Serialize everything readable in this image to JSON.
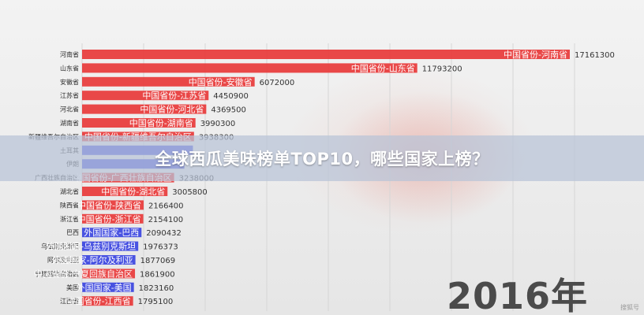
{
  "banner": {
    "title": "全球西瓜美味榜单TOP10，哪些国家上榜？"
  },
  "year_label": "2016年",
  "watermark": "搜狐号",
  "chart_data": {
    "type": "bar",
    "orientation": "horizontal",
    "title": "",
    "xlabel": "",
    "ylabel": "",
    "xlim": [
      0,
      17161300
    ],
    "grid": true,
    "colors": {
      "china": "#e8393a",
      "foreign": "#3a44e0"
    },
    "categories": [
      "河南省",
      "山东省",
      "安徽省",
      "江苏省",
      "河北省",
      "湖南省",
      "新疆维吾尔自治区",
      "土耳其",
      "伊朗",
      "广西壮族自治区",
      "湖北省",
      "陕西省",
      "浙江省",
      "巴西",
      "乌兹别克斯坦",
      "阿尔及利亚",
      "宁夏回族自治区",
      "美国",
      "江西省"
    ],
    "series": [
      {
        "bar_labels": [
          "中国省份-河南省",
          "中国省份-山东省",
          "中国省份-安徽省",
          "中国省份-江苏省",
          "中国省份-河北省",
          "中国省份-湖南省",
          "中国省份-新疆维吾尔自治区",
          "",
          "",
          "中国省份-广西壮族自治区",
          "中国省份-湖北省",
          "中国省份-陕西省",
          "中国省份-浙江省",
          "外国国家-巴西",
          "外国国家-乌兹别克斯坦",
          "外国国家-阿尔及利亚",
          "中国省份-宁夏回族自治区",
          "外国国家-美国",
          "中国省份-江西省"
        ],
        "values": [
          17161300,
          11793200,
          6072000,
          4450900,
          4369500,
          3990300,
          3938300,
          3900000,
          3600000,
          3238000,
          3005800,
          2166400,
          2154100,
          2090432,
          1976373,
          1877069,
          1861900,
          1823160,
          1795100
        ],
        "value_labels": [
          "17161300",
          "11793200",
          "6072000",
          "4450900",
          "4369500",
          "3990300",
          "3938300",
          "",
          "",
          "3238000",
          "3005800",
          "2166400",
          "2154100",
          "2090432",
          "1976373",
          "1877069",
          "1861900",
          "1823160",
          "1795100"
        ],
        "group": [
          "china",
          "china",
          "china",
          "china",
          "china",
          "china",
          "china",
          "foreign",
          "foreign",
          "china",
          "china",
          "china",
          "china",
          "foreign",
          "foreign",
          "foreign",
          "china",
          "foreign",
          "china"
        ]
      }
    ]
  }
}
